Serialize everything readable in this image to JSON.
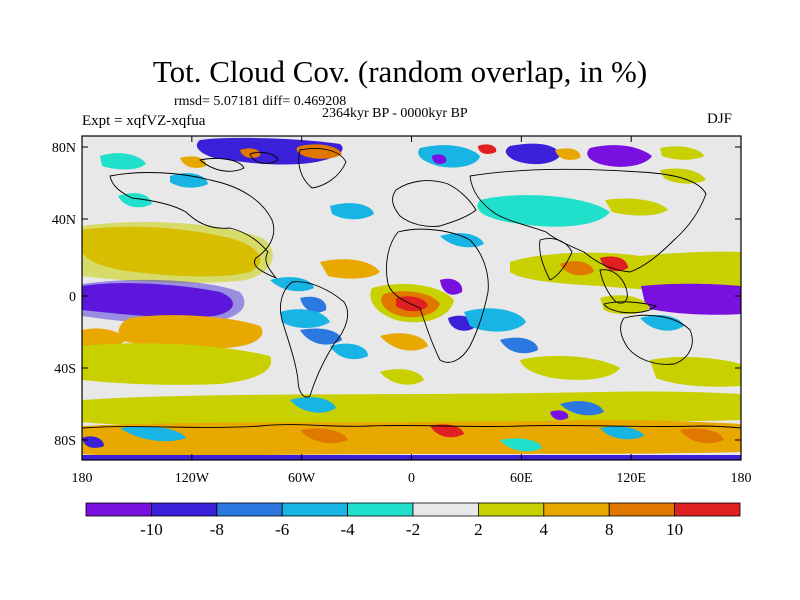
{
  "title": "Tot. Cloud Cov. (random overlap, in %)",
  "stats_line": "rmsd= 5.07181 diff= 0.469208",
  "period": "2364kyr BP - 0000kyr BP",
  "experiment": "Expt = xqfVZ-xqfua",
  "season": "DJF",
  "axes": {
    "lon_labels": [
      "180",
      "120W",
      "60W",
      "0",
      "60E",
      "120E",
      "180"
    ],
    "lat_labels": [
      "80N",
      "40N",
      "0",
      "40S",
      "80S"
    ]
  },
  "colorbar": {
    "labels": [
      "-10",
      "-8",
      "-6",
      "-4",
      "-2",
      "2",
      "4",
      "8",
      "10"
    ],
    "colors": [
      "#7a10e0",
      "#3a20d8",
      "#2a78e0",
      "#17b4e4",
      "#20e0cc",
      "#e8e8e8",
      "#c8d000",
      "#e8a800",
      "#e07800",
      "#e02020"
    ]
  },
  "colors": {
    "land_outline": "#000000",
    "background_field": "#e8e8e8"
  }
}
